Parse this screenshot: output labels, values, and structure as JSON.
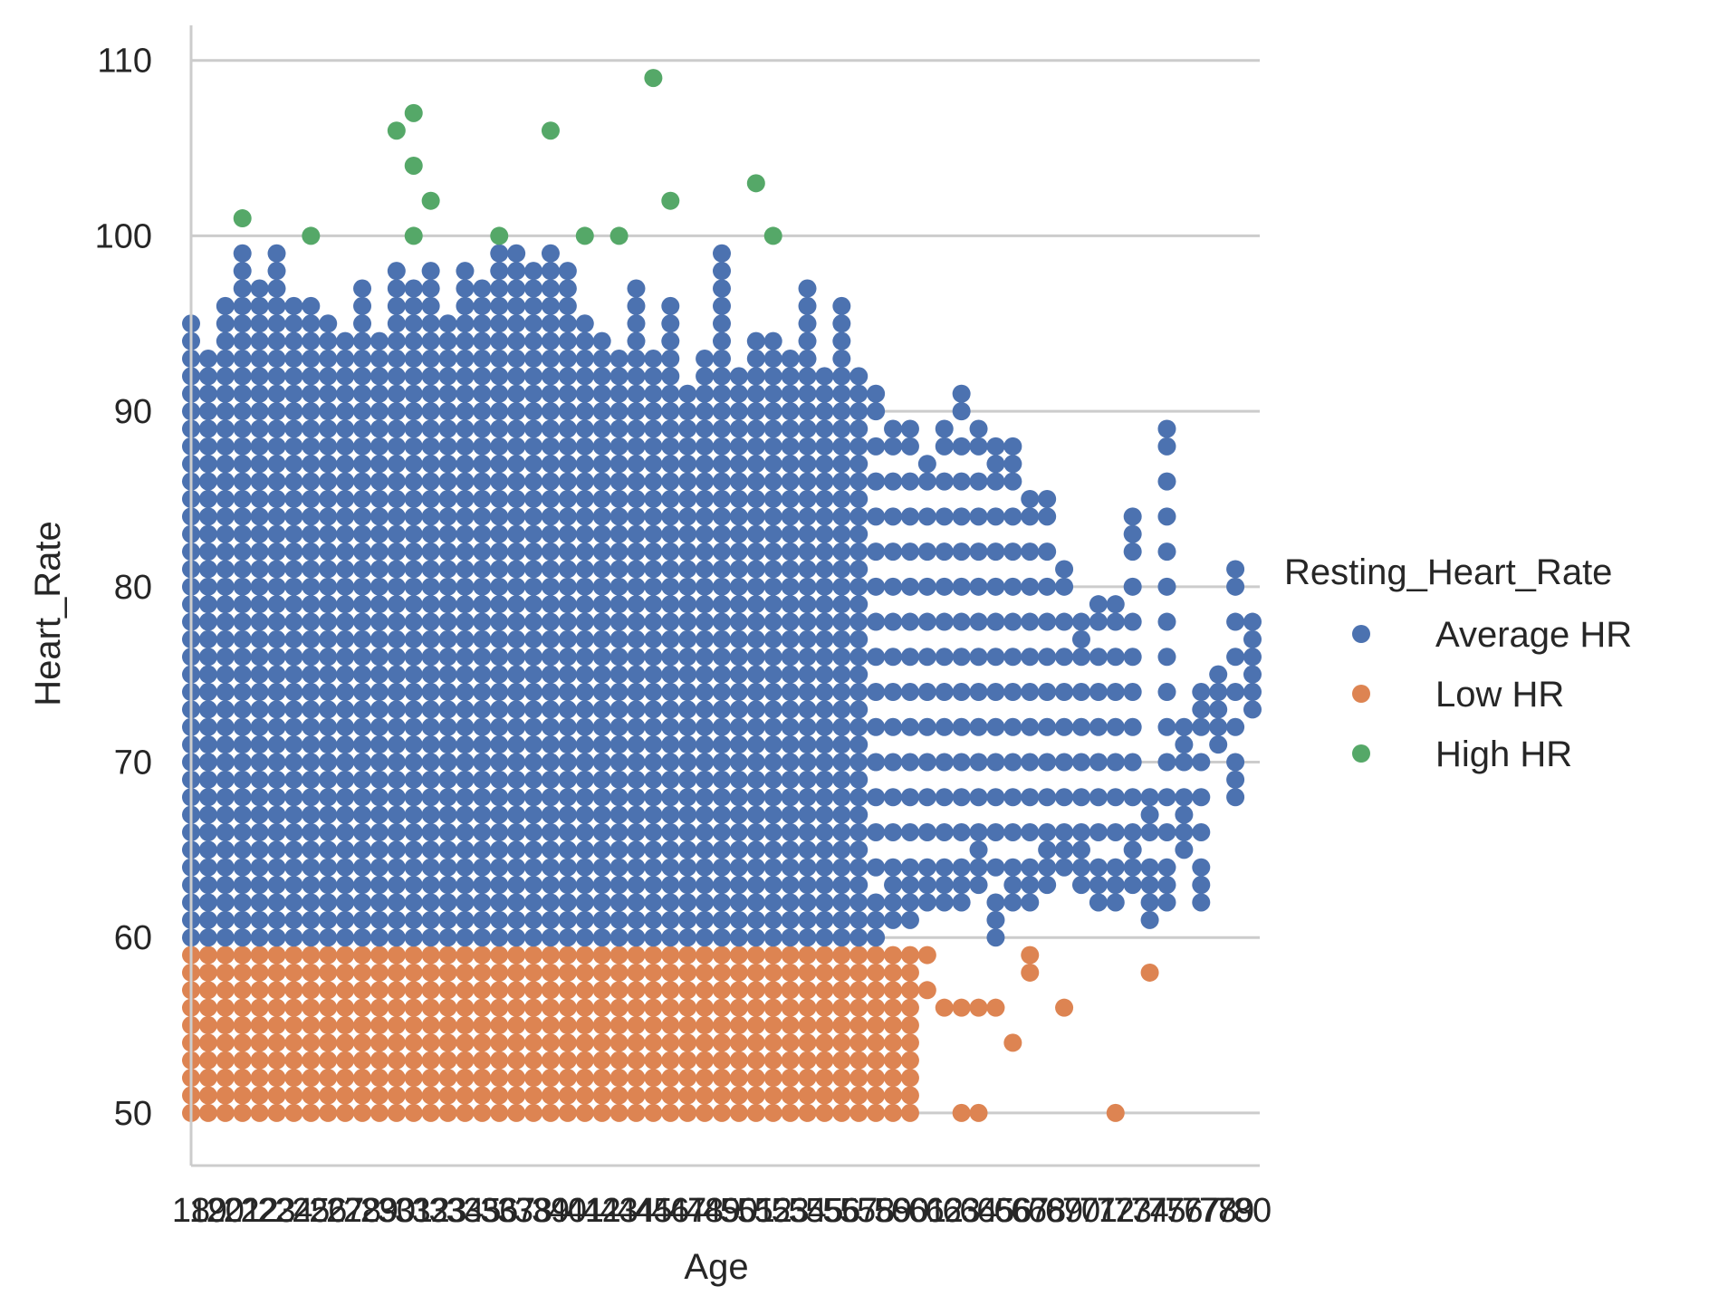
{
  "chart_data": {
    "type": "scatter",
    "title": "",
    "xlabel": "Age",
    "ylabel": "Heart_Rate",
    "x_categories": [
      18,
      19,
      20,
      21,
      22,
      23,
      24,
      25,
      26,
      27,
      28,
      29,
      30,
      31,
      32,
      33,
      34,
      35,
      36,
      37,
      38,
      39,
      40,
      41,
      42,
      43,
      44,
      45,
      46,
      47,
      48,
      49,
      50,
      51,
      52,
      53,
      54,
      55,
      56,
      57,
      58,
      59,
      60,
      61,
      62,
      63,
      64,
      65,
      66,
      67,
      68,
      69,
      70,
      71,
      72,
      73,
      74,
      75,
      76,
      77,
      78,
      79,
      80
    ],
    "x_tick_labels": [
      "18",
      "19",
      "20",
      "21",
      "22",
      "23",
      "24",
      "25",
      "26",
      "27",
      "28",
      "29",
      "30",
      "31",
      "32",
      "33",
      "34",
      "35",
      "36",
      "37",
      "38",
      "39",
      "40",
      "41",
      "42",
      "43",
      "44",
      "45",
      "46",
      "47",
      "48",
      "49",
      "50",
      "51",
      "52",
      "53",
      "54",
      "55",
      "56",
      "57",
      "58",
      "59",
      "60",
      "61",
      "62",
      "63",
      "64",
      "65",
      "66",
      "67",
      "68",
      "69",
      "70",
      "71",
      "72",
      "73",
      "74",
      "75",
      "76",
      "77",
      "78",
      "79",
      "80"
    ],
    "ylim": [
      47,
      112
    ],
    "y_ticks": [
      50,
      60,
      70,
      80,
      90,
      100,
      110
    ],
    "grid": "horizontal",
    "legend": {
      "title": "Resting_Heart_Rate",
      "placement": "right"
    },
    "series": [
      {
        "name": "Average HR",
        "color": "#4C72B0",
        "y_range": [
          60,
          99
        ],
        "max_hr_by_age": [
          95,
          93,
          96,
          99,
          97,
          99,
          96,
          96,
          95,
          94,
          97,
          94,
          98,
          97,
          98,
          95,
          98,
          97,
          99,
          99,
          98,
          99,
          98,
          95,
          94,
          93,
          97,
          93,
          96,
          91,
          93,
          99,
          92,
          94,
          94,
          93,
          97,
          92,
          96,
          92,
          91,
          89,
          89,
          87,
          89,
          91,
          89,
          88,
          88,
          85,
          85,
          81,
          78,
          79,
          79,
          84,
          68,
          89,
          72,
          74,
          75,
          81,
          78
        ],
        "min_hr_by_age": [
          60,
          60,
          60,
          60,
          60,
          60,
          60,
          60,
          60,
          60,
          60,
          60,
          60,
          60,
          60,
          60,
          60,
          60,
          60,
          60,
          60,
          60,
          60,
          60,
          60,
          60,
          60,
          60,
          60,
          60,
          60,
          60,
          60,
          60,
          60,
          60,
          60,
          60,
          60,
          60,
          60,
          61,
          61,
          62,
          62,
          62,
          63,
          60,
          62,
          62,
          63,
          64,
          63,
          62,
          62,
          63,
          61,
          62,
          65,
          62,
          71,
          68,
          73
        ]
      },
      {
        "name": "Low HR",
        "color": "#DD8452",
        "y_range": [
          50,
          59
        ],
        "points_sparse": [
          [
            61,
            59
          ],
          [
            61,
            57
          ],
          [
            62,
            56
          ],
          [
            63,
            56
          ],
          [
            64,
            56
          ],
          [
            64,
            50
          ],
          [
            63,
            50
          ],
          [
            65,
            56
          ],
          [
            66,
            54
          ],
          [
            67,
            59
          ],
          [
            67,
            58
          ],
          [
            69,
            56
          ],
          [
            72,
            50
          ],
          [
            74,
            58
          ]
        ]
      },
      {
        "name": "High HR",
        "color": "#55A868",
        "points": [
          [
            21,
            101
          ],
          [
            25,
            100
          ],
          [
            30,
            106
          ],
          [
            31,
            107
          ],
          [
            31,
            104
          ],
          [
            31,
            100
          ],
          [
            32,
            102
          ],
          [
            36,
            100
          ],
          [
            39,
            106
          ],
          [
            41,
            100
          ],
          [
            43,
            100
          ],
          [
            45,
            109
          ],
          [
            46,
            102
          ],
          [
            51,
            103
          ],
          [
            52,
            100
          ]
        ]
      }
    ]
  }
}
